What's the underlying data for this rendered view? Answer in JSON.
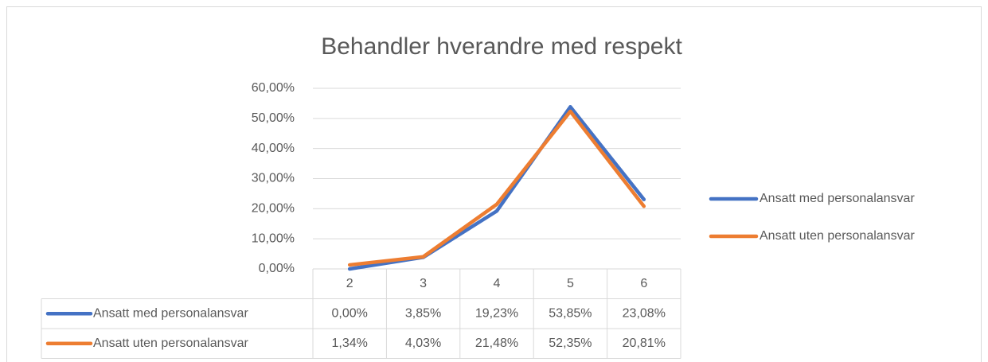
{
  "chart_data": {
    "type": "line",
    "title": "Behandler hverandre med respekt",
    "categories": [
      "2",
      "3",
      "4",
      "5",
      "6"
    ],
    "series": [
      {
        "name": "Ansatt med personalansvar",
        "color": "#4472c4",
        "values": [
          0,
          3.85,
          19.23,
          53.85,
          23.08
        ],
        "value_labels": [
          "0,00%",
          "3,85%",
          "19,23%",
          "53,85%",
          "23,08%"
        ]
      },
      {
        "name": "Ansatt uten personalansvar",
        "color": "#ed7d31",
        "values": [
          1.34,
          4.03,
          21.48,
          52.35,
          20.81
        ],
        "value_labels": [
          "1,34%",
          "4,03%",
          "21,48%",
          "52,35%",
          "20,81%"
        ]
      }
    ],
    "ylim": [
      0,
      60
    ],
    "yticks": [
      {
        "value": 0,
        "label": "0,00%"
      },
      {
        "value": 10,
        "label": "10,00%"
      },
      {
        "value": 20,
        "label": "20,00%"
      },
      {
        "value": 30,
        "label": "30,00%"
      },
      {
        "value": 40,
        "label": "40,00%"
      },
      {
        "value": 50,
        "label": "50,00%"
      },
      {
        "value": 60,
        "label": "60,00%"
      }
    ],
    "grid": true,
    "legend": "right",
    "data_table": true
  }
}
